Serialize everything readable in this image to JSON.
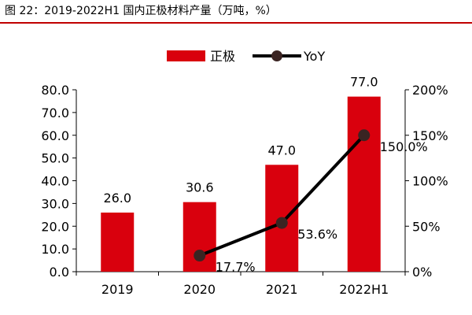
{
  "figure_title": "图 22：2019-2022H1 国内正极材料产量（万吨，%）",
  "chart_data": {
    "type": "bar",
    "categories": [
      "2019",
      "2020",
      "2021",
      "2022H1"
    ],
    "series": [
      {
        "name": "正极",
        "type": "bar",
        "axis": "left",
        "color": "#d9000d",
        "values": [
          26.0,
          30.6,
          47.0,
          77.0
        ],
        "labels": [
          "26.0",
          "30.6",
          "47.0",
          "77.0"
        ]
      },
      {
        "name": "YoY",
        "type": "line",
        "axis": "right",
        "color": "#000000",
        "marker_color": "#3a2422",
        "values": [
          null,
          17.7,
          53.6,
          150.0
        ],
        "labels": [
          "",
          "17.7%",
          "53.6%",
          "150.0%"
        ]
      }
    ],
    "y_left": {
      "lim": [
        0,
        80
      ],
      "ticks": [
        "0.0",
        "10.0",
        "20.0",
        "30.0",
        "40.0",
        "50.0",
        "60.0",
        "70.0",
        "80.0"
      ]
    },
    "y_right": {
      "lim": [
        0,
        200
      ],
      "ticks": [
        "0%",
        "50%",
        "100%",
        "150%",
        "200%"
      ]
    },
    "legend_position": "top-center",
    "grid": false
  }
}
